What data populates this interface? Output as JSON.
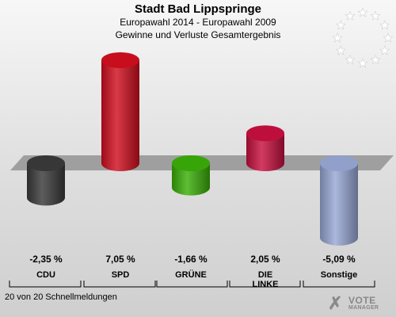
{
  "header": {
    "title": "Stadt Bad Lippspringe",
    "subtitle1": "Europawahl 2014 - Europawahl 2009",
    "subtitle2": "Gewinne und Verluste Gesamtergebnis"
  },
  "footer": {
    "text": "20 von 20 Schnellmeldungen"
  },
  "logo": {
    "line1": "VOTE",
    "line2": "MANAGER"
  },
  "chart_data": {
    "type": "bar",
    "title": "Stadt Bad Lippspringe",
    "subtitle": "Europawahl 2014 - Europawahl 2009 · Gewinne und Verluste Gesamtergebnis",
    "categories": [
      "CDU",
      "SPD",
      "GRÜNE",
      "DIE LINKE",
      "Sonstige"
    ],
    "category_lines": [
      [
        "CDU"
      ],
      [
        "SPD"
      ],
      [
        "GRÜNE"
      ],
      [
        "DIE",
        "LINKE"
      ],
      [
        "Sonstige"
      ]
    ],
    "values": [
      -2.35,
      7.05,
      -1.66,
      2.05,
      -5.09
    ],
    "value_labels": [
      "-2,35 %",
      "7,05 %",
      "-1,66 %",
      "2,05 %",
      "-5,09 %"
    ],
    "colors": [
      "#3a3a3a",
      "#d10f1e",
      "#3aae08",
      "#c8103f",
      "#98a8d6"
    ],
    "xlabel": "",
    "ylabel": "",
    "baseline": 0,
    "grid": false,
    "legend": "none"
  }
}
